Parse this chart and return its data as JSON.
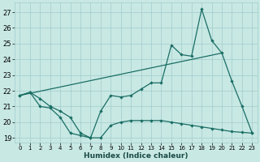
{
  "xlabel": "Humidex (Indice chaleur)",
  "bg_color": "#c8e8e4",
  "grid_color": "#a0cccc",
  "line_color": "#1a6e64",
  "xlim": [
    -0.5,
    23.5
  ],
  "ylim": [
    18.7,
    27.6
  ],
  "yticks": [
    19,
    20,
    21,
    22,
    23,
    24,
    25,
    26,
    27
  ],
  "xticks": [
    0,
    1,
    2,
    3,
    4,
    5,
    6,
    7,
    8,
    9,
    10,
    11,
    12,
    13,
    14,
    15,
    16,
    17,
    18,
    19,
    20,
    21,
    22,
    23
  ],
  "line1_x": [
    0,
    1,
    2,
    3,
    4,
    5,
    6,
    7,
    8,
    9,
    10,
    11,
    12,
    13,
    14,
    15,
    16,
    17,
    18,
    19,
    20,
    21,
    22,
    23
  ],
  "line1_y": [
    21.7,
    21.9,
    21.5,
    21.0,
    20.7,
    20.3,
    19.3,
    19.0,
    20.7,
    21.7,
    21.6,
    21.7,
    22.1,
    22.5,
    22.5,
    24.9,
    24.3,
    24.2,
    27.2,
    25.2,
    24.4,
    22.6,
    21.0,
    19.3
  ],
  "line2_x": [
    0,
    1,
    2,
    3,
    4,
    5,
    6,
    7,
    8,
    9,
    10,
    11,
    12,
    13,
    14,
    15,
    16,
    17,
    18,
    19,
    20,
    21,
    22,
    23
  ],
  "line2_y": [
    21.7,
    21.9,
    21.0,
    20.9,
    20.3,
    19.3,
    19.15,
    19.0,
    19.0,
    19.8,
    20.0,
    20.1,
    20.1,
    20.1,
    20.1,
    20.0,
    19.9,
    19.8,
    19.7,
    19.6,
    19.5,
    19.4,
    19.35,
    19.3
  ],
  "line3_x": [
    0,
    20
  ],
  "line3_y": [
    21.7,
    24.4
  ]
}
